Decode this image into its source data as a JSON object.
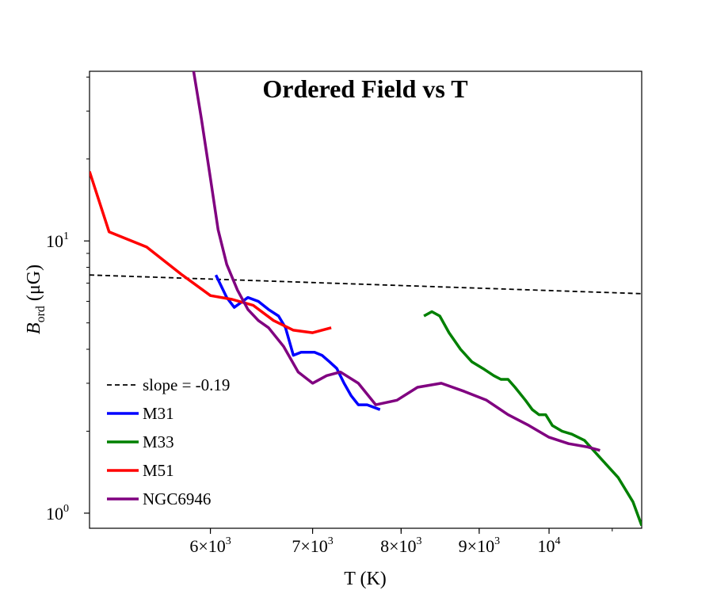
{
  "chart_data": {
    "type": "line",
    "title": "Ordered Field vs T",
    "xlabel": "T (K)",
    "ylabel_main": "B",
    "ylabel_sub": "ord",
    "ylabel_unit": "(μG)",
    "xscale": "log",
    "yscale": "log",
    "xlim": [
      5000,
      11500
    ],
    "ylim": [
      0.88,
      42
    ],
    "grid": false,
    "legend_placement": "lower-left",
    "x_ticks": [
      {
        "value": 6000,
        "mantissa": "6",
        "exp": "3"
      },
      {
        "value": 7000,
        "mantissa": "7",
        "exp": "3"
      },
      {
        "value": 8000,
        "mantissa": "8",
        "exp": "3"
      },
      {
        "value": 9000,
        "mantissa": "9",
        "exp": "3"
      },
      {
        "value": 10000,
        "mantissa": "",
        "exp": "4"
      }
    ],
    "y_ticks": [
      {
        "value": 1,
        "exp": "0"
      },
      {
        "value": 10,
        "exp": "1"
      }
    ],
    "series": [
      {
        "name": "slope = -0.19",
        "color": "#000000",
        "dash": true,
        "x": [
          5000,
          11500
        ],
        "y": [
          7.5,
          6.4
        ]
      },
      {
        "name": "M31",
        "color": "#0000ff",
        "dash": false,
        "x": [
          6050,
          6150,
          6220,
          6350,
          6450,
          6550,
          6650,
          6720,
          6800,
          6880,
          6950,
          7020,
          7100,
          7180,
          7260,
          7340,
          7420,
          7500,
          7600,
          7750
        ],
        "y": [
          7.5,
          6.2,
          5.7,
          6.2,
          6.0,
          5.6,
          5.3,
          4.8,
          3.8,
          3.9,
          3.9,
          3.9,
          3.8,
          3.6,
          3.4,
          3.0,
          2.7,
          2.5,
          2.5,
          2.4
        ]
      },
      {
        "name": "M33",
        "color": "#008000",
        "dash": false,
        "x": [
          8280,
          8380,
          8480,
          8600,
          8750,
          8900,
          9050,
          9200,
          9300,
          9400,
          9500,
          9650,
          9750,
          9850,
          9950,
          10050,
          10200,
          10350,
          10550,
          10800,
          11100,
          11350,
          11500
        ],
        "y": [
          5.3,
          5.5,
          5.3,
          4.6,
          4.0,
          3.6,
          3.4,
          3.2,
          3.1,
          3.1,
          2.9,
          2.6,
          2.4,
          2.3,
          2.3,
          2.1,
          2.0,
          1.95,
          1.85,
          1.6,
          1.35,
          1.1,
          0.9
        ]
      },
      {
        "name": "M51",
        "color": "#ff0000",
        "dash": false,
        "x": [
          5000,
          5150,
          5450,
          5750,
          6000,
          6200,
          6400,
          6600,
          6800,
          7000,
          7200
        ],
        "y": [
          18,
          10.8,
          9.5,
          7.5,
          6.3,
          6.1,
          5.8,
          5.1,
          4.7,
          4.6,
          4.8
        ]
      },
      {
        "name": "NGC6946",
        "color": "#800080",
        "dash": false,
        "x": [
          5850,
          5920,
          6000,
          6070,
          6150,
          6250,
          6350,
          6450,
          6550,
          6700,
          6850,
          7000,
          7150,
          7300,
          7500,
          7700,
          7950,
          8200,
          8500,
          8800,
          9100,
          9400,
          9700,
          10000,
          10300,
          10600,
          10800
        ],
        "y": [
          42,
          28,
          17,
          11,
          8.2,
          6.6,
          5.6,
          5.1,
          4.8,
          4.1,
          3.3,
          3.0,
          3.2,
          3.3,
          3.0,
          2.5,
          2.6,
          2.9,
          3.0,
          2.8,
          2.6,
          2.3,
          2.1,
          1.9,
          1.8,
          1.75,
          1.7
        ]
      }
    ]
  }
}
